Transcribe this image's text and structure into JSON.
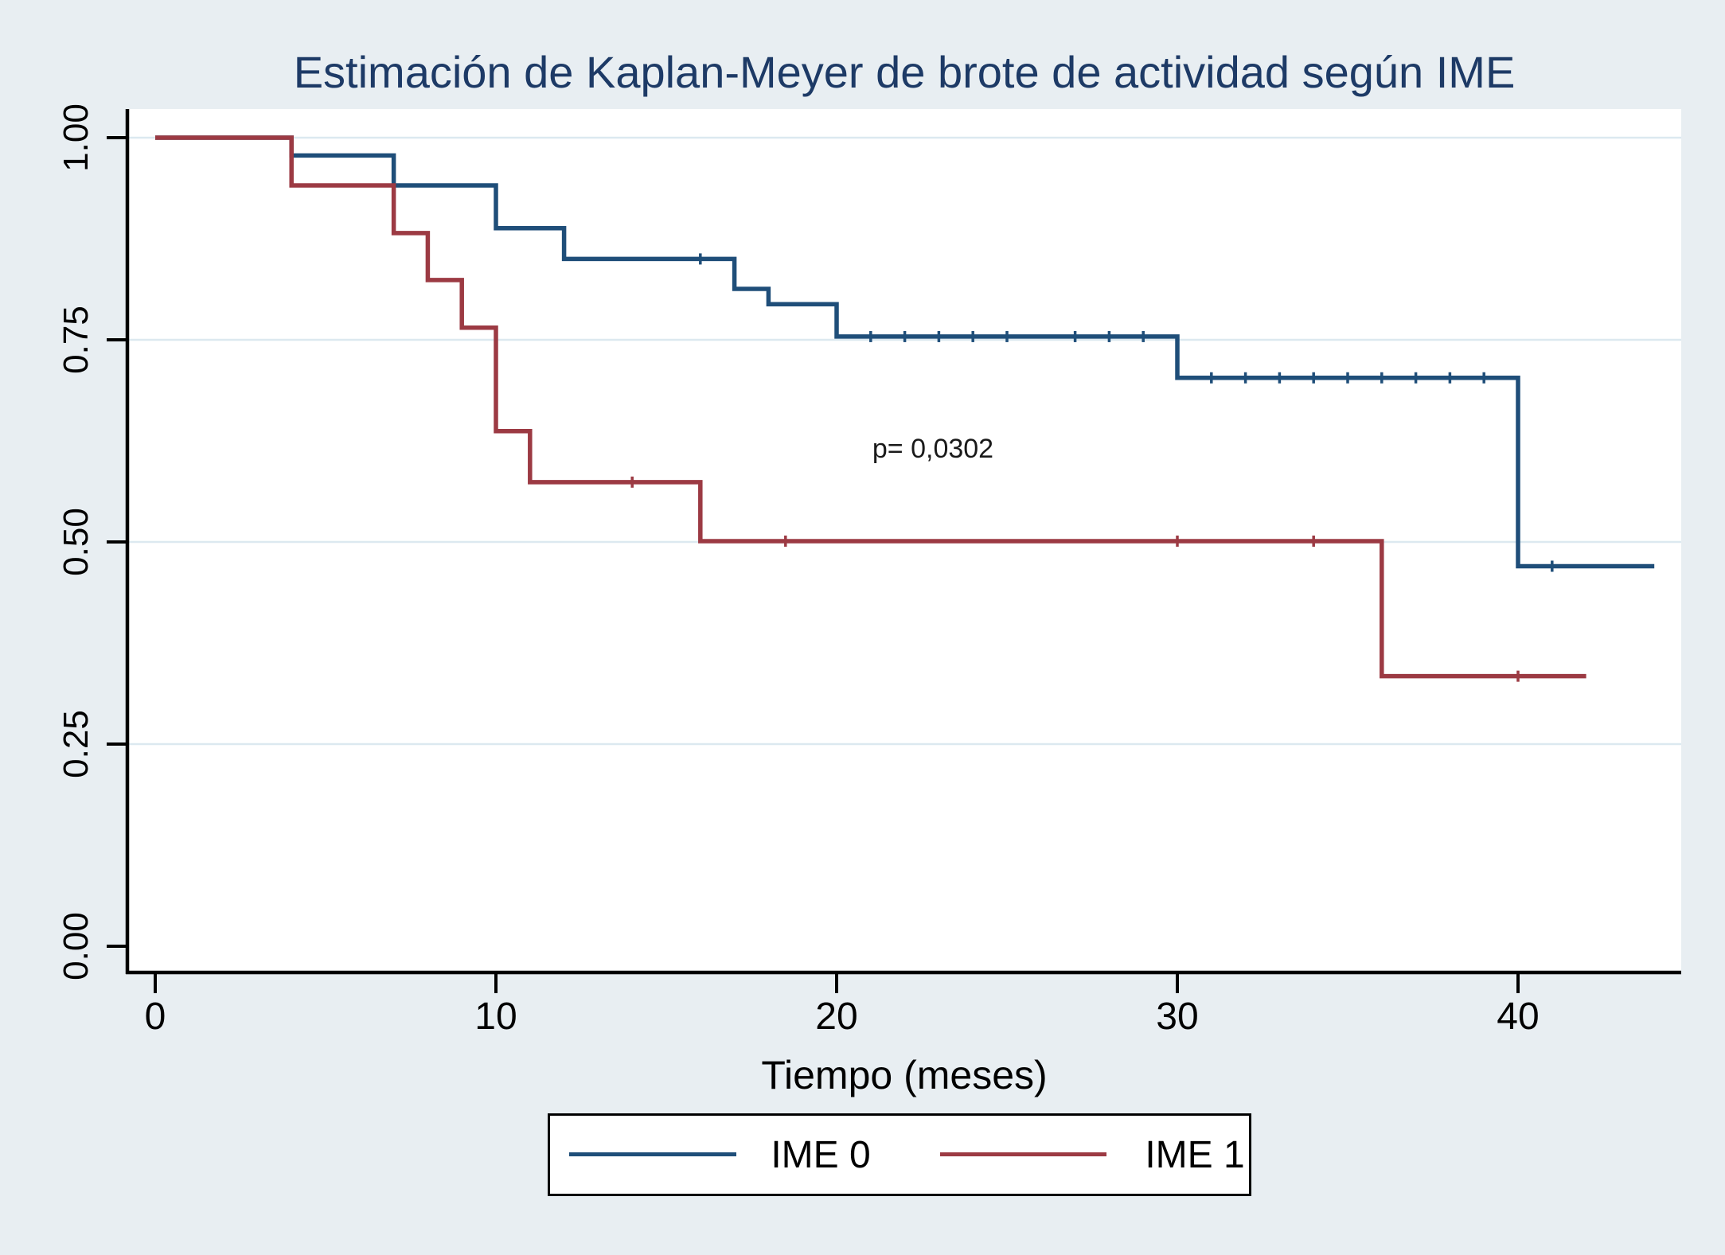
{
  "title": "Estimación de Kaplan-Meyer de brote de actividad según IME",
  "colors": {
    "background": "#e8eef2",
    "plot_background": "#ffffff",
    "gridline": "#dce9f0",
    "axis": "#000000",
    "title_color": "#1d3a66",
    "ime0": "#1f4e79",
    "ime1": "#9c3a43"
  },
  "legend": {
    "entries": [
      {
        "label": "IME 0",
        "color_key": "ime0"
      },
      {
        "label": "IME 1",
        "color_key": "ime1"
      }
    ]
  },
  "chart_data": {
    "type": "line",
    "subtype": "kaplan-meier-step",
    "title": "Estimación de Kaplan-Meyer de brote de actividad según IME",
    "xlabel": "Tiempo (meses)",
    "ylabel": "",
    "xlim": [
      0,
      45
    ],
    "ylim": [
      0,
      1
    ],
    "grid": true,
    "legend_position": "bottom",
    "x_ticks": [
      0,
      10,
      20,
      30,
      40
    ],
    "x_tick_labels": [
      "0",
      "10",
      "20",
      "30",
      "40"
    ],
    "y_ticks": [
      0.0,
      0.25,
      0.5,
      0.75,
      1.0
    ],
    "y_tick_labels": [
      "0.00",
      "0.25",
      "0.50",
      "0.75",
      "1.00"
    ],
    "series": [
      {
        "name": "IME 0",
        "color": "#1f4e79",
        "start": [
          0,
          1.0
        ],
        "steps": [
          [
            4,
            0.978
          ],
          [
            7,
            0.941
          ],
          [
            10,
            0.888
          ],
          [
            12,
            0.85
          ],
          [
            17,
            0.813
          ],
          [
            18,
            0.794
          ],
          [
            20,
            0.754
          ],
          [
            30,
            0.703
          ],
          [
            40,
            0.47
          ]
        ],
        "end_time": 44,
        "censored": [
          [
            16,
            0.85
          ],
          [
            21,
            0.754
          ],
          [
            22,
            0.754
          ],
          [
            23,
            0.754
          ],
          [
            24,
            0.754
          ],
          [
            25,
            0.754
          ],
          [
            27,
            0.754
          ],
          [
            28,
            0.754
          ],
          [
            29,
            0.754
          ],
          [
            31,
            0.703
          ],
          [
            32,
            0.703
          ],
          [
            33,
            0.703
          ],
          [
            34,
            0.703
          ],
          [
            35,
            0.703
          ],
          [
            36,
            0.703
          ],
          [
            37,
            0.703
          ],
          [
            38,
            0.703
          ],
          [
            39,
            0.703
          ],
          [
            41,
            0.47
          ]
        ]
      },
      {
        "name": "IME 1",
        "color": "#9c3a43",
        "start": [
          0,
          1.0
        ],
        "steps": [
          [
            4,
            0.941
          ],
          [
            7,
            0.882
          ],
          [
            8,
            0.824
          ],
          [
            9,
            0.765
          ],
          [
            10,
            0.637
          ],
          [
            11,
            0.574
          ],
          [
            16,
            0.501
          ],
          [
            36,
            0.334
          ]
        ],
        "end_time": 42,
        "censored": [
          [
            14,
            0.574
          ],
          [
            18.5,
            0.501
          ],
          [
            30,
            0.501
          ],
          [
            34,
            0.501
          ],
          [
            40,
            0.334
          ]
        ]
      }
    ],
    "annotations": [
      {
        "text": "p= 0,0302",
        "x": 22.8,
        "y": 0.613
      }
    ]
  }
}
